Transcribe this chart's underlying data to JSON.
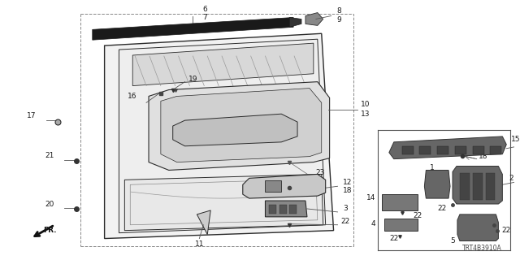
{
  "diagram_code": "TRT4B3910A",
  "bg_color": "#ffffff",
  "lc": "#2a2a2a",
  "fig_w": 6.4,
  "fig_h": 3.2,
  "dpi": 100
}
